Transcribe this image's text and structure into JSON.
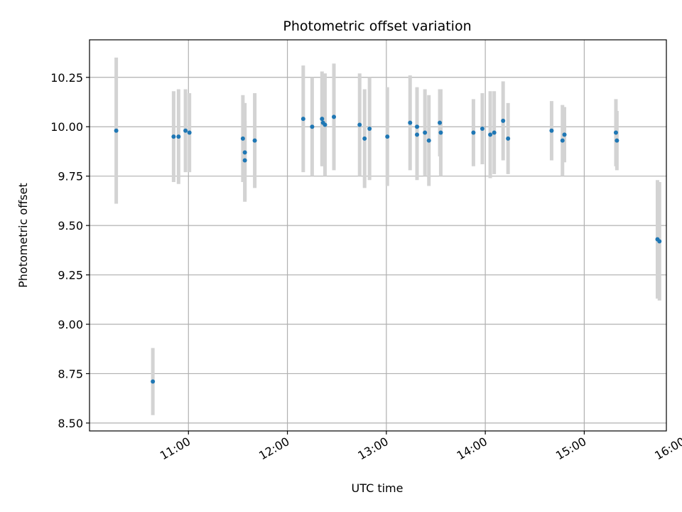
{
  "chart_data": {
    "type": "scatter",
    "title": "Photometric offset variation",
    "xlabel": "UTC time",
    "ylabel": "Photometric offset",
    "x_unit": "hours (UTC)",
    "xlim": [
      10.0,
      15.83
    ],
    "ylim": [
      8.46,
      10.44
    ],
    "grid": true,
    "legend": "none",
    "x_ticks": [
      {
        "value": 11,
        "label": "11:00"
      },
      {
        "value": 12,
        "label": "12:00"
      },
      {
        "value": 13,
        "label": "13:00"
      },
      {
        "value": 14,
        "label": "14:00"
      },
      {
        "value": 15,
        "label": "15:00"
      },
      {
        "value": 16,
        "label": "16:00"
      }
    ],
    "y_ticks": [
      {
        "value": 8.5,
        "label": "8.50"
      },
      {
        "value": 8.75,
        "label": "8.75"
      },
      {
        "value": 9.0,
        "label": "9.00"
      },
      {
        "value": 9.25,
        "label": "9.25"
      },
      {
        "value": 9.5,
        "label": "9.50"
      },
      {
        "value": 9.75,
        "label": "9.75"
      },
      {
        "value": 10.0,
        "label": "10.00"
      },
      {
        "value": 10.25,
        "label": "10.25"
      }
    ],
    "point_color": "#1f77b4",
    "error_color": "#d3d3d3",
    "series": [
      {
        "name": "offset",
        "x": [
          10.27,
          10.64,
          10.85,
          10.9,
          10.97,
          11.01,
          11.55,
          11.57,
          11.57,
          11.67,
          12.16,
          12.25,
          12.35,
          12.36,
          12.38,
          12.47,
          12.73,
          12.78,
          12.83,
          13.01,
          13.24,
          13.31,
          13.31,
          13.39,
          13.43,
          13.54,
          13.55,
          13.88,
          13.97,
          14.05,
          14.09,
          14.18,
          14.23,
          14.67,
          14.78,
          14.8,
          15.32,
          15.33,
          15.74,
          15.76
        ],
        "y": [
          9.98,
          8.71,
          9.95,
          9.95,
          9.98,
          9.97,
          9.94,
          9.87,
          9.83,
          9.93,
          10.04,
          10.0,
          10.04,
          10.02,
          10.01,
          10.05,
          10.01,
          9.94,
          9.99,
          9.95,
          10.02,
          10.0,
          9.96,
          9.97,
          9.93,
          10.02,
          9.97,
          9.97,
          9.99,
          9.96,
          9.97,
          10.03,
          9.94,
          9.98,
          9.93,
          9.96,
          9.97,
          9.93,
          9.43,
          9.42
        ],
        "yerr": [
          0.37,
          0.17,
          0.23,
          0.24,
          0.21,
          0.2,
          0.22,
          0.25,
          0.2,
          0.24,
          0.27,
          0.25,
          0.24,
          0.22,
          0.26,
          0.27,
          0.26,
          0.25,
          0.26,
          0.25,
          0.24,
          0.2,
          0.23,
          0.22,
          0.23,
          0.17,
          0.22,
          0.17,
          0.18,
          0.22,
          0.21,
          0.2,
          0.18,
          0.15,
          0.18,
          0.14,
          0.17,
          0.15,
          0.3,
          0.3
        ]
      }
    ]
  }
}
